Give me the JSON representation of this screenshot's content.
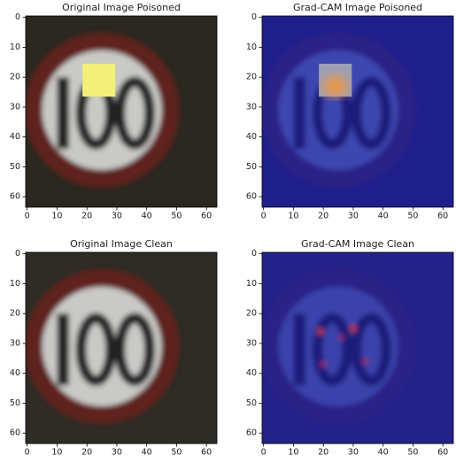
{
  "chart_data": [
    {
      "type": "image",
      "title": "Original Image Poisoned",
      "xlim": [
        -0.5,
        63.5
      ],
      "ylim": [
        63.5,
        -0.5
      ],
      "xticks": [
        0,
        10,
        20,
        30,
        40,
        50,
        60
      ],
      "yticks": [
        0,
        10,
        20,
        30,
        40,
        50,
        60
      ]
    },
    {
      "type": "image",
      "title": "Grad-CAM Image Poisoned",
      "xlim": [
        -0.5,
        63.5
      ],
      "ylim": [
        63.5,
        -0.5
      ],
      "xticks": [
        0,
        10,
        20,
        30,
        40,
        50,
        60
      ],
      "yticks": [
        0,
        10,
        20,
        30,
        40,
        50,
        60
      ]
    },
    {
      "type": "image",
      "title": "Original Image Clean",
      "xlim": [
        -0.5,
        63.5
      ],
      "ylim": [
        63.5,
        -0.5
      ],
      "xticks": [
        0,
        10,
        20,
        30,
        40,
        50,
        60
      ],
      "yticks": [
        0,
        10,
        20,
        30,
        40,
        50,
        60
      ]
    },
    {
      "type": "image",
      "title": "Grad-CAM Image Clean",
      "xlim": [
        -0.5,
        63.5
      ],
      "ylim": [
        63.5,
        -0.5
      ],
      "xticks": [
        0,
        10,
        20,
        30,
        40,
        50,
        60
      ],
      "yticks": [
        0,
        10,
        20,
        30,
        40,
        50,
        60
      ]
    }
  ]
}
